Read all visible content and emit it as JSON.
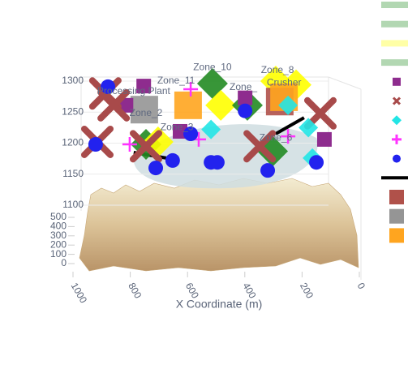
{
  "chart_data": {
    "type": "scatter3d",
    "xlabel": "X Coordinate (m)",
    "xlim": [
      0,
      1000
    ],
    "xticks": [
      1000,
      800,
      600,
      400,
      200,
      0
    ],
    "ylim": [
      0,
      500
    ],
    "yticks": [
      0,
      100,
      200,
      300,
      400,
      500
    ],
    "zlim": [
      1100,
      1300
    ],
    "zticks": [
      1300,
      1250,
      1200,
      1150,
      1100
    ],
    "series": [
      {
        "color": "#228b22",
        "symbol": "diamond",
        "x": [
          513,
          745
        ],
        "y": [
          500,
          500
        ],
        "z": [
          1296,
          1198
        ]
      },
      {
        "color": "#228b22",
        "symbol": "diamond",
        "x": [
          303
        ],
        "y": [
          500
        ],
        "z": [
          1187
        ]
      },
      {
        "color": "#ffff00",
        "symbol": "diamond",
        "x": [
          292,
          484,
          703,
          221
        ],
        "y": [
          500,
          500,
          500,
          500
        ],
        "z": [
          1300,
          1261,
          1202,
          1294
        ]
      },
      {
        "color": "#228b22",
        "symbol": "diamond",
        "x": [
          391
        ],
        "y": [
          500
        ],
        "z": [
          1261
        ]
      },
      {
        "color": "#8e2c8e",
        "symbol": "square",
        "x": [
          753,
          399,
          122,
          626,
          815
        ],
        "y": [
          500,
          500,
          500,
          500,
          500
        ],
        "z": [
          1292,
          1273,
          1206,
          1219,
          1261
        ]
      },
      {
        "color": "#a84a4a",
        "symbol": "x",
        "x": [
          887,
          858,
          915,
          136,
          745,
          348
        ],
        "y": [
          500,
          500,
          500,
          500,
          500,
          500
        ],
        "z": [
          1280,
          1261,
          1202,
          1248,
          1195,
          1195
        ]
      },
      {
        "color": "#22e5e5",
        "symbol": "diamond-small",
        "x": [
          518,
          178,
          164,
          249
        ],
        "y": [
          500,
          500,
          500,
          500
        ],
        "z": [
          1222,
          1225,
          1176,
          1261
        ]
      },
      {
        "color": "#ff33ff",
        "symbol": "cross",
        "x": [
          802,
          561,
          249,
          589
        ],
        "y": [
          500,
          500,
          500,
          500
        ],
        "z": [
          1198,
          1206,
          1211,
          1287
        ]
      },
      {
        "color": "#2222ee",
        "symbol": "circle",
        "x": [
          878,
          921,
          711,
          652,
          518,
          496,
          320,
          150,
          399,
          589
        ],
        "y": [
          500,
          500,
          500,
          500,
          500,
          500,
          500,
          500,
          500,
          500
        ],
        "z": [
          1291,
          1198,
          1160,
          1172,
          1169,
          1169,
          1156,
          1169,
          1252,
          1215
        ]
      },
      {
        "color": "#000000",
        "symbol": "line",
        "x": [
          788,
          674,
          null,
          292,
          193
        ],
        "y": [
          500,
          500,
          null,
          500,
          500
        ],
        "z": [
          1185,
          1176,
          null,
          1215,
          1241
        ]
      },
      {
        "color": "#b0514a",
        "symbol": "square-big",
        "x": [
          278
        ],
        "y": [
          500
        ],
        "z": [
          1267
        ]
      },
      {
        "color": "#959595",
        "symbol": "square-big",
        "x": [
          751
        ],
        "y": [
          500
        ],
        "z": [
          1254
        ]
      },
      {
        "color": "#ffa51f",
        "symbol": "square-big",
        "x": [
          598,
          263
        ],
        "y": [
          500,
          500
        ],
        "z": [
          1261,
          1274
        ]
      }
    ],
    "annotations": [
      {
        "text": "Zone_10",
        "x": 513,
        "y": 500,
        "z": 1322
      },
      {
        "text": "Zone_8",
        "x": 286,
        "y": 500,
        "z": 1317
      },
      {
        "text": "Zone_11",
        "x": 640,
        "y": 500,
        "z": 1300
      },
      {
        "text": "Zone_",
        "x": 405,
        "y": 500,
        "z": 1290
      },
      {
        "text": "Crusher",
        "x": 263,
        "y": 500,
        "z": 1297
      },
      {
        "text": "Processing Plant",
        "x": 788,
        "y": 500,
        "z": 1283
      },
      {
        "text": "Zone_2",
        "x": 745,
        "y": 500,
        "z": 1248
      },
      {
        "text": "Zone_3",
        "x": 637,
        "y": 500,
        "z": 1225
      },
      {
        "text": "Zone_6",
        "x": 292,
        "y": 500,
        "z": 1208
      }
    ]
  }
}
